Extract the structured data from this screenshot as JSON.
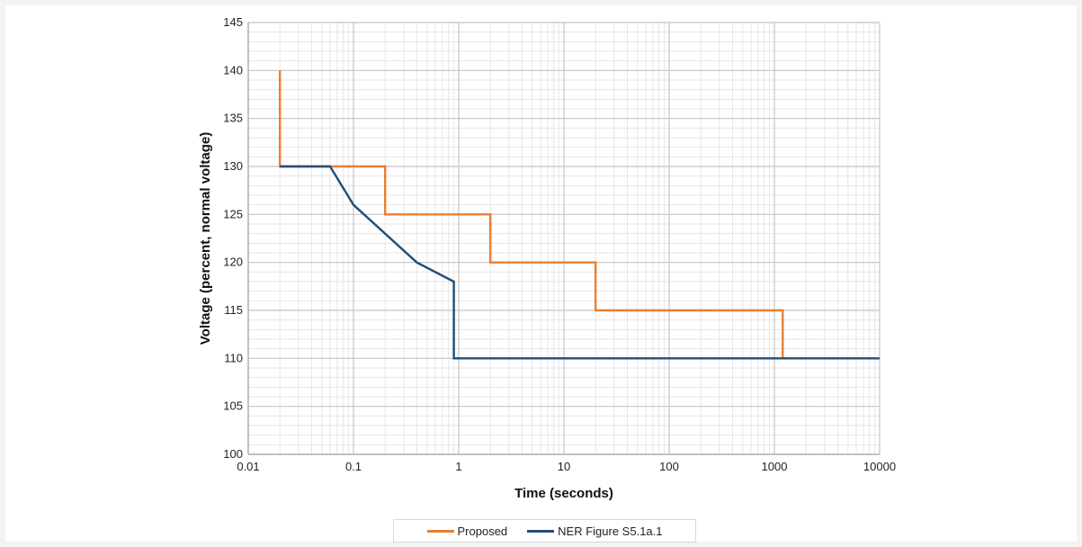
{
  "chart_data": {
    "type": "line",
    "xlabel": "Time (seconds)",
    "ylabel": "Voltage (percent, normal voltage)",
    "x_scale": "log",
    "xlim": [
      0.01,
      10000
    ],
    "ylim": [
      100,
      145
    ],
    "x_ticks": [
      "0.01",
      "0.1",
      "1",
      "10",
      "100",
      "1000",
      "10000"
    ],
    "y_ticks": [
      "100",
      "105",
      "110",
      "115",
      "120",
      "125",
      "130",
      "135",
      "140",
      "145"
    ],
    "grid": true,
    "legend_position": "bottom",
    "series": [
      {
        "name": "Proposed",
        "color": "#ed7d31",
        "x": [
          0.02,
          0.02,
          0.2,
          0.2,
          2,
          2,
          20,
          20,
          1200,
          1200
        ],
        "y": [
          140,
          130,
          130,
          125,
          125,
          120,
          120,
          115,
          115,
          110
        ]
      },
      {
        "name": "NER Figure S5.1a.1",
        "color": "#1f4e79",
        "x": [
          0.02,
          0.06,
          0.1,
          0.4,
          0.9,
          0.9,
          10000
        ],
        "y": [
          130,
          130,
          126,
          120,
          118,
          110,
          110
        ]
      }
    ]
  }
}
